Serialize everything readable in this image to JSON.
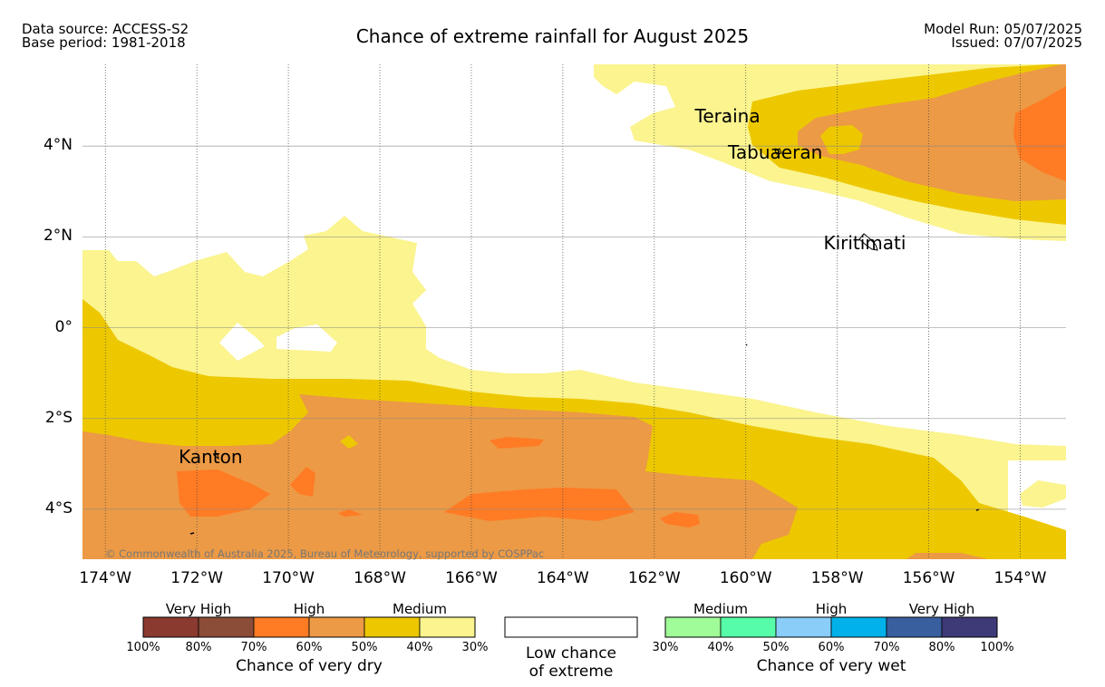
{
  "header": {
    "source_line1": "Data source: ACCESS-S2",
    "source_line2": "Base period: 1981-2018",
    "title": "Chance of extreme rainfall for August 2025",
    "run_line": "Model Run: 05/07/2025",
    "issued_line": "Issued: 07/07/2025"
  },
  "map": {
    "extent": {
      "lon_min": -174.5,
      "lon_max": -153.0,
      "lat_min": -5.1,
      "lat_max": 5.8
    },
    "x_ticks": [
      "174°W",
      "172°W",
      "170°W",
      "168°W",
      "166°W",
      "164°W",
      "162°W",
      "160°W",
      "158°W",
      "156°W",
      "154°W"
    ],
    "y_ticks": [
      "4°N",
      "2°N",
      "0°",
      "2°S",
      "4°S"
    ],
    "grid": true,
    "places": [
      {
        "name": "Teraina",
        "lon": -160.4,
        "lat": 4.7
      },
      {
        "name": "Tabuaeran",
        "lon": -159.4,
        "lat": 3.9
      },
      {
        "name": "Kiritimati",
        "lon": -157.4,
        "lat": 1.9
      },
      {
        "name": "Kanton",
        "lon": -171.7,
        "lat": -2.8
      }
    ],
    "copyright": "© Commonwealth of Australia 2025, Bureau of Meteorology, supported by COSPPac",
    "colors": {
      "dry_30_40": "#fbf48f",
      "dry_40_50": "#edc800",
      "dry_50_60": "#ec9a45",
      "dry_60_70": "#ff7b24"
    }
  },
  "legend": {
    "dry": {
      "headings": [
        "Very High",
        "High",
        "Medium"
      ],
      "ticks": [
        "100%",
        "80%",
        "70%",
        "60%",
        "50%",
        "40%",
        "30%"
      ],
      "colors": [
        "#8b3a30",
        "#8b4c38",
        "#ff7b24",
        "#ec9a45",
        "#edc800",
        "#fbf48f"
      ],
      "caption": "Chance of very dry"
    },
    "low": {
      "caption_line1": "Low chance",
      "caption_line2": "of extreme"
    },
    "wet": {
      "headings": [
        "Medium",
        "High",
        "Very High"
      ],
      "ticks": [
        "30%",
        "40%",
        "50%",
        "60%",
        "70%",
        "80%",
        "100%"
      ],
      "colors": [
        "#9ffc99",
        "#56fca7",
        "#89cdf8",
        "#00b2e9",
        "#395f9f",
        "#3e3a78"
      ],
      "caption": "Chance of very wet"
    }
  }
}
